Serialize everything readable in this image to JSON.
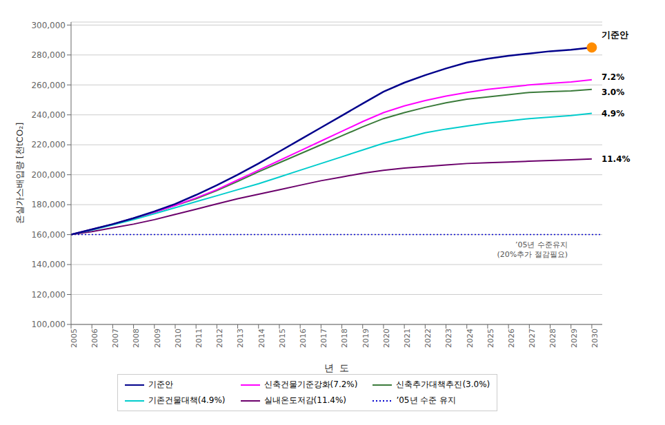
{
  "chart_data": {
    "type": "line",
    "xlabel": "년  도",
    "ylabel": "온실가스배입량 [천tCO₂]",
    "x": [
      2005,
      2006,
      2007,
      2008,
      2009,
      2010,
      2011,
      2012,
      2013,
      2014,
      2015,
      2016,
      2017,
      2018,
      2019,
      2020,
      2021,
      2022,
      2023,
      2024,
      2025,
      2026,
      2027,
      2028,
      2029,
      2030
    ],
    "xlim": [
      2005,
      2030.5
    ],
    "xticks": [
      2005,
      2006,
      2007,
      2008,
      2009,
      2010,
      2011,
      2012,
      2013,
      2014,
      2015,
      2016,
      2017,
      2018,
      2019,
      2020,
      2021,
      2022,
      2023,
      2024,
      2025,
      2026,
      2027,
      2028,
      2029,
      2030
    ],
    "ylim": [
      100000,
      302000
    ],
    "yticks": [
      {
        "value": 100000,
        "label": "100,000"
      },
      {
        "value": 120000,
        "label": "120,000"
      },
      {
        "value": 140000,
        "label": "140,000"
      },
      {
        "value": 160000,
        "label": "160,000"
      },
      {
        "value": 180000,
        "label": "180,000"
      },
      {
        "value": 200000,
        "label": "200,000"
      },
      {
        "value": 220000,
        "label": "220,000"
      },
      {
        "value": 240000,
        "label": "240,000"
      },
      {
        "value": 260000,
        "label": "260,000"
      },
      {
        "value": 280000,
        "label": "280,000"
      },
      {
        "value": 300000,
        "label": "300,000"
      }
    ],
    "grid": "y",
    "legend": "bottom",
    "series": [
      {
        "name": "기준안",
        "color": "#00008B",
        "end_label": "기준안",
        "values": [
          160000,
          163500,
          167000,
          171000,
          175500,
          180500,
          186500,
          193000,
          200000,
          207500,
          215500,
          223500,
          231500,
          239500,
          247500,
          255500,
          261500,
          266500,
          271000,
          275000,
          277500,
          279500,
          281000,
          282500,
          283500,
          285000
        ]
      },
      {
        "name": "신축건물기준강화(7.2%)",
        "color": "#FF00FF",
        "end_label": "7.2%",
        "values": [
          160000,
          163500,
          167000,
          171000,
          175000,
          179500,
          184500,
          190000,
          196500,
          203000,
          209500,
          216000,
          222500,
          229000,
          235500,
          241500,
          246000,
          249500,
          252500,
          255000,
          257000,
          258500,
          260000,
          261000,
          262000,
          263500
        ]
      },
      {
        "name": "신축추가대책추진(3.0%)",
        "color": "#3A7A3A",
        "end_label": "3.0%",
        "values": [
          160000,
          163500,
          167000,
          171000,
          175000,
          179500,
          184000,
          189500,
          195500,
          202000,
          208000,
          214000,
          220000,
          226000,
          232000,
          237500,
          241500,
          245000,
          248000,
          250500,
          252000,
          253500,
          255000,
          255500,
          256000,
          257000
        ]
      },
      {
        "name": "기존건물대책(4.9%)",
        "color": "#00CCCC",
        "end_label": "4.9%",
        "values": [
          160000,
          163000,
          166500,
          170000,
          174000,
          178000,
          182000,
          186000,
          190000,
          194000,
          198500,
          203000,
          207500,
          212000,
          216500,
          221000,
          224500,
          228000,
          230500,
          232500,
          234500,
          236000,
          237500,
          238500,
          239500,
          241000
        ]
      },
      {
        "name": "실내온도저감(11.4%)",
        "color": "#6B006B",
        "end_label": "11.4%",
        "values": [
          160000,
          162000,
          164500,
          167000,
          170000,
          173500,
          177000,
          180500,
          184000,
          187000,
          190000,
          193000,
          196000,
          198500,
          201000,
          203000,
          204500,
          205500,
          206500,
          207500,
          208000,
          208500,
          209000,
          209500,
          210000,
          210500
        ]
      }
    ],
    "reference_line": {
      "name": "’05년 수준 유지",
      "value": 160000,
      "color": "#0000CD",
      "line_style": "dotted",
      "annotation": "’05년 수준유지\n(20%추가 절감필요)"
    },
    "highlight_point": {
      "x": 2030,
      "y": 285000,
      "color": "#FF8C00"
    }
  }
}
